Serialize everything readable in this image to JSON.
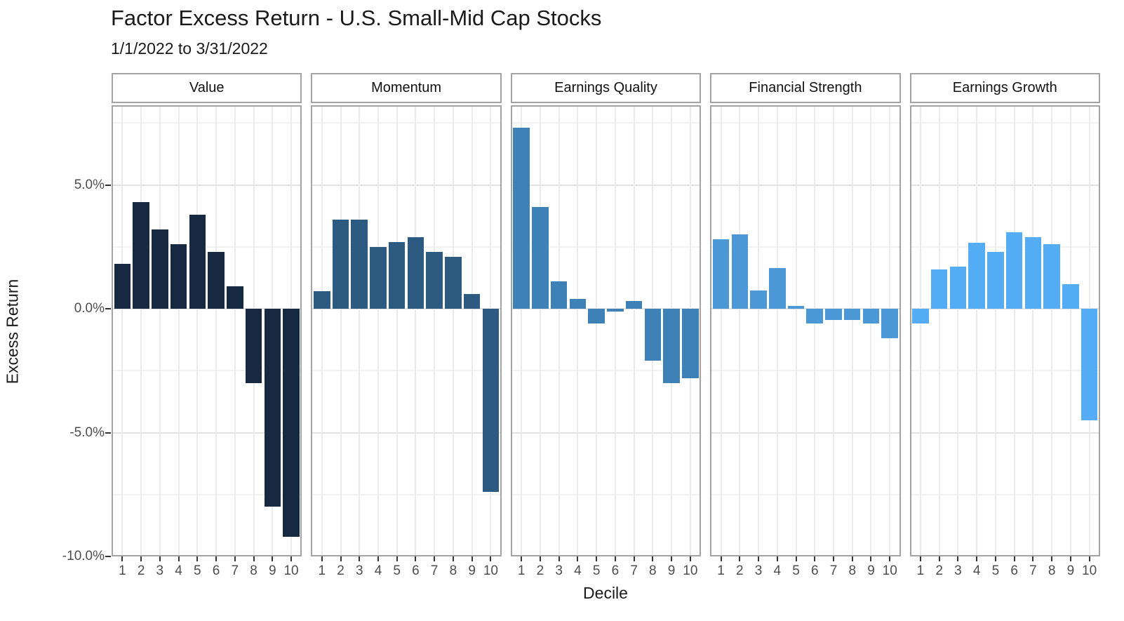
{
  "title": "Factor Excess Return - U.S. Small-Mid Cap Stocks",
  "subtitle": "1/1/2022 to 3/31/2022",
  "chart_data": {
    "type": "bar",
    "title": "Factor Excess Return - U.S. Small-Mid Cap Stocks",
    "subtitle": "1/1/2022 to 3/31/2022",
    "xlabel": "Decile",
    "ylabel": "Excess Return",
    "layout": "5 faceted panels side by side, shared y axis, white facet strips with gray border, light gray major and minor horizontal gridlines, vertical gridline at each decile",
    "legend": "none",
    "ylim": [
      -10.2,
      8.2
    ],
    "y_axis": {
      "major_ticks": [
        {
          "label": "5.0%",
          "value": 5
        },
        {
          "label": "0.0%",
          "value": 0
        },
        {
          "label": "-5.0%",
          "value": -5
        },
        {
          "label": "-10.0%",
          "value": -10
        }
      ],
      "minor_tick_values": [
        7.5,
        2.5,
        -2.5,
        -7.5
      ]
    },
    "categories": [
      "1",
      "2",
      "3",
      "4",
      "5",
      "6",
      "7",
      "8",
      "9",
      "10"
    ],
    "series": [
      {
        "name": "Value",
        "color": "#172940",
        "values": [
          1.8,
          4.3,
          3.2,
          2.6,
          3.8,
          2.3,
          0.9,
          -3.0,
          -8.0,
          -9.2
        ]
      },
      {
        "name": "Momentum",
        "color": "#2d5a80",
        "values": [
          0.7,
          3.6,
          3.6,
          2.5,
          2.7,
          2.9,
          2.3,
          2.1,
          0.6,
          -7.4
        ]
      },
      {
        "name": "Earnings Quality",
        "color": "#3e81b6",
        "values": [
          7.3,
          4.1,
          1.1,
          0.4,
          -0.6,
          -0.1,
          0.3,
          -2.1,
          -3.0,
          -2.8
        ]
      },
      {
        "name": "Financial Strength",
        "color": "#4c98d6",
        "values": [
          2.8,
          3.0,
          0.75,
          1.65,
          0.1,
          -0.6,
          -0.45,
          -0.45,
          -0.6,
          -1.2
        ]
      },
      {
        "name": "Earnings Growth",
        "color": "#54adf4",
        "values": [
          -0.6,
          1.6,
          1.7,
          2.65,
          2.3,
          3.1,
          2.9,
          2.6,
          1.0,
          -4.5
        ]
      }
    ]
  }
}
